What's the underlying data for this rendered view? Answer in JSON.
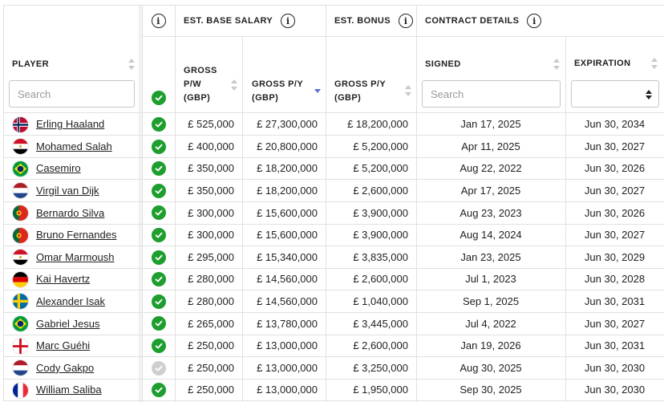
{
  "header": {
    "group_base_salary": "EST. BASE SALARY",
    "group_bonus": "EST. BONUS",
    "group_contract": "CONTRACT DETAILS",
    "col_player": "PLAYER",
    "col_gross_pw": "GROSS\nP/W\n(GBP)",
    "col_gross_py": "GROSS P/Y\n(GBP)",
    "col_bonus_py": "GROSS P/Y\n(GBP)",
    "col_signed": "SIGNED",
    "col_expiration": "EXPIRATION",
    "player_search_placeholder": "Search",
    "signed_search_placeholder": "Search",
    "info_glyph": "i"
  },
  "colors": {
    "check_green": "#1e9e2f",
    "check_grey": "#cfcfcf",
    "sort_active": "#5b6fd6"
  },
  "rows": [
    {
      "flag": "norway",
      "name": "Erling Haaland",
      "verified": true,
      "pw": "£ 525,000",
      "py": "£ 27,300,000",
      "bonus": "£ 18,200,000",
      "signed": "Jan 17, 2025",
      "expiration": "Jun 30, 2034"
    },
    {
      "flag": "egypt",
      "name": "Mohamed Salah",
      "verified": true,
      "pw": "£ 400,000",
      "py": "£ 20,800,000",
      "bonus": "£ 5,200,000",
      "signed": "Apr 11, 2025",
      "expiration": "Jun 30, 2027"
    },
    {
      "flag": "brazil",
      "name": "Casemiro",
      "verified": true,
      "pw": "£ 350,000",
      "py": "£ 18,200,000",
      "bonus": "£ 5,200,000",
      "signed": "Aug 22, 2022",
      "expiration": "Jun 30, 2026"
    },
    {
      "flag": "netherlands",
      "name": "Virgil van Dijk",
      "verified": true,
      "pw": "£ 350,000",
      "py": "£ 18,200,000",
      "bonus": "£ 2,600,000",
      "signed": "Apr 17, 2025",
      "expiration": "Jun 30, 2027"
    },
    {
      "flag": "portugal",
      "name": "Bernardo Silva",
      "verified": true,
      "pw": "£ 300,000",
      "py": "£ 15,600,000",
      "bonus": "£ 3,900,000",
      "signed": "Aug 23, 2023",
      "expiration": "Jun 30, 2026"
    },
    {
      "flag": "portugal",
      "name": "Bruno Fernandes",
      "verified": true,
      "pw": "£ 300,000",
      "py": "£ 15,600,000",
      "bonus": "£ 3,900,000",
      "signed": "Aug 14, 2024",
      "expiration": "Jun 30, 2027"
    },
    {
      "flag": "egypt",
      "name": "Omar Marmoush",
      "verified": true,
      "pw": "£ 295,000",
      "py": "£ 15,340,000",
      "bonus": "£ 3,835,000",
      "signed": "Jan 23, 2025",
      "expiration": "Jun 30, 2029"
    },
    {
      "flag": "germany",
      "name": "Kai Havertz",
      "verified": true,
      "pw": "£ 280,000",
      "py": "£ 14,560,000",
      "bonus": "£ 2,600,000",
      "signed": "Jul 1, 2023",
      "expiration": "Jun 30, 2028"
    },
    {
      "flag": "sweden",
      "name": "Alexander Isak",
      "verified": true,
      "pw": "£ 280,000",
      "py": "£ 14,560,000",
      "bonus": "£ 1,040,000",
      "signed": "Sep 1, 2025",
      "expiration": "Jun 30, 2031"
    },
    {
      "flag": "brazil",
      "name": "Gabriel Jesus",
      "verified": true,
      "pw": "£ 265,000",
      "py": "£ 13,780,000",
      "bonus": "£ 3,445,000",
      "signed": "Jul 4, 2022",
      "expiration": "Jun 30, 2027"
    },
    {
      "flag": "england",
      "name": "Marc Guéhi",
      "verified": true,
      "pw": "£ 250,000",
      "py": "£ 13,000,000",
      "bonus": "£ 2,600,000",
      "signed": "Jan 19, 2026",
      "expiration": "Jun 30, 2031"
    },
    {
      "flag": "netherlands",
      "name": "Cody Gakpo",
      "verified": false,
      "pw": "£ 250,000",
      "py": "£ 13,000,000",
      "bonus": "£ 3,250,000",
      "signed": "Aug 30, 2025",
      "expiration": "Jun 30, 2030"
    },
    {
      "flag": "france",
      "name": "William Saliba",
      "verified": true,
      "pw": "£ 250,000",
      "py": "£ 13,000,000",
      "bonus": "£ 1,950,000",
      "signed": "Sep 30, 2025",
      "expiration": "Jun 30, 2030"
    }
  ]
}
